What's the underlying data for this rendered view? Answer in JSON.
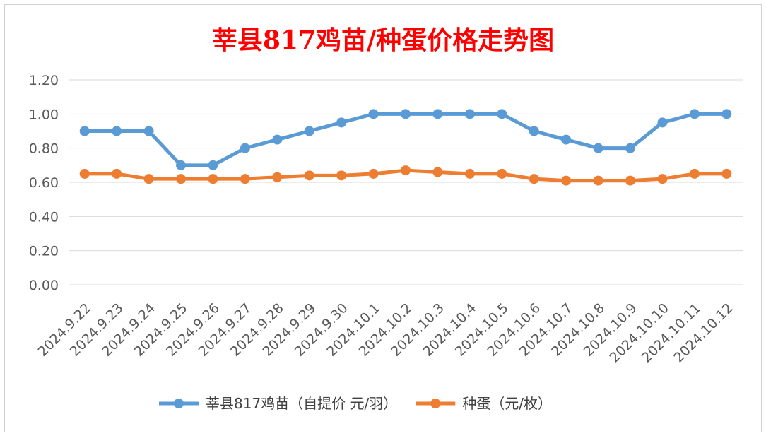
{
  "chart_data": {
    "type": "line",
    "title": "莘县817鸡苗/种蛋价格走势图",
    "title_color": "#ff0000",
    "categories": [
      "2024.9.22",
      "2024.9.23",
      "2024.9.24",
      "2024.9.25",
      "2024.9.26",
      "2024.9.27",
      "2024.9.28",
      "2024.9.29",
      "2024.9.30",
      "2024.10.1",
      "2024.10.2",
      "2024.10.3",
      "2024.10.4",
      "2024.10.5",
      "2024.10.6",
      "2024.10.7",
      "2024.10.8",
      "2024.10.9",
      "2024.10.10",
      "2024.10.11",
      "2024.10.12"
    ],
    "series": [
      {
        "name": "莘县817鸡苗（自提价 元/羽）",
        "color": "#5b9bd5",
        "values": [
          0.9,
          0.9,
          0.9,
          0.7,
          0.7,
          0.8,
          0.85,
          0.9,
          0.95,
          1.0,
          1.0,
          1.0,
          1.0,
          1.0,
          0.9,
          0.85,
          0.8,
          0.8,
          0.95,
          1.0,
          1.0
        ]
      },
      {
        "name": "种蛋（元/枚）",
        "color": "#ed7d31",
        "values": [
          0.65,
          0.65,
          0.62,
          0.62,
          0.62,
          0.62,
          0.63,
          0.64,
          0.64,
          0.65,
          0.67,
          0.66,
          0.65,
          0.65,
          0.62,
          0.61,
          0.61,
          0.61,
          0.62,
          0.65,
          0.65
        ]
      }
    ],
    "ylim": [
      0,
      1.2
    ],
    "yticks": [
      "0.00",
      "0.20",
      "0.40",
      "0.60",
      "0.80",
      "1.00",
      "1.20"
    ],
    "grid": true,
    "legend_position": "bottom"
  }
}
